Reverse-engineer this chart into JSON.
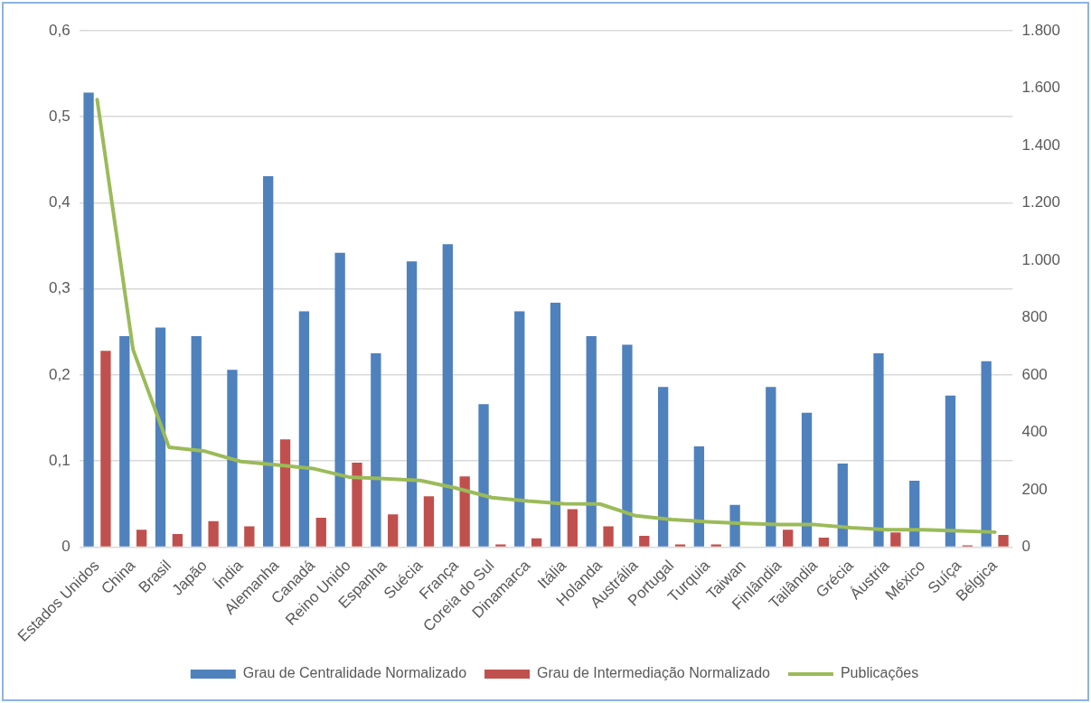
{
  "chart_data": {
    "type": "bar",
    "categories": [
      "Estados Unidos",
      "China",
      "Brasil",
      "Japão",
      "Índia",
      "Alemanha",
      "Canadá",
      "Reino Unido",
      "Espanha",
      "Suécia",
      "França",
      "Coreia do Sul",
      "Dinamarca",
      "Itália",
      "Holanda",
      "Austrália",
      "Portugal",
      "Turquia",
      "Taiwan",
      "Finlândia",
      "Tailândia",
      "Grécia",
      "Áustria",
      "México",
      "Suíça",
      "Bélgica"
    ],
    "series": [
      {
        "name": "Grau de Centralidade Normalizado",
        "color": "#4f81bd",
        "values": [
          0.528,
          0.245,
          0.255,
          0.245,
          0.206,
          0.431,
          0.274,
          0.342,
          0.225,
          0.332,
          0.352,
          0.166,
          0.274,
          0.284,
          0.245,
          0.235,
          0.186,
          0.117,
          0.049,
          0.186,
          0.156,
          0.097,
          0.225,
          0.077,
          0.176,
          0.216
        ]
      },
      {
        "name": "Grau de Intermediação Normalizado",
        "color": "#c0504d",
        "values": [
          0.228,
          0.02,
          0.015,
          0.03,
          0.024,
          0.125,
          0.034,
          0.098,
          0.038,
          0.059,
          0.082,
          0.003,
          0.01,
          0.044,
          0.024,
          0.013,
          0.003,
          0.003,
          0,
          0.02,
          0.011,
          0,
          0.017,
          null,
          0.002,
          0.014
        ]
      },
      {
        "name": "Publicações",
        "type": "line",
        "axis": "y2",
        "color": "#9bbb59",
        "values": [
          1560,
          688,
          348,
          334,
          298,
          286,
          274,
          244,
          238,
          232,
          205,
          172,
          160,
          151,
          150,
          109,
          96,
          88,
          82,
          78,
          78,
          67,
          60,
          60,
          56,
          52
        ]
      }
    ],
    "ylim": [
      0,
      0.6
    ],
    "yticks": [
      {
        "value": 0,
        "label": "0"
      },
      {
        "value": 0.1,
        "label": "0,1"
      },
      {
        "value": 0.2,
        "label": "0,2"
      },
      {
        "value": 0.3,
        "label": "0,3"
      },
      {
        "value": 0.4,
        "label": "0,4"
      },
      {
        "value": 0.5,
        "label": "0,5"
      },
      {
        "value": 0.6,
        "label": "0,6"
      }
    ],
    "y2lim": [
      0,
      1800
    ],
    "y2ticks": [
      0,
      200,
      400,
      600,
      800,
      {
        "value": 1000,
        "label": "1.000"
      },
      {
        "value": 1200,
        "label": "1.200"
      },
      {
        "value": 1400,
        "label": "1.400"
      },
      {
        "value": 1600,
        "label": "1.600"
      },
      {
        "value": 1800,
        "label": "1.800"
      }
    ],
    "grid": "y",
    "legend": "bottom",
    "marker": "none",
    "line_style": "solid"
  }
}
